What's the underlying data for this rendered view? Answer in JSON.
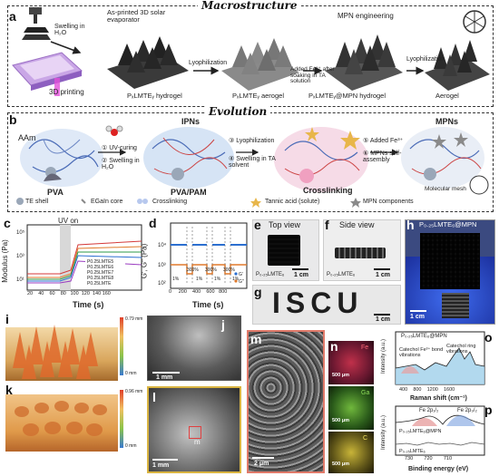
{
  "panel_a": {
    "letter": "a",
    "title": "Macrostructure",
    "labels": {
      "swelling": "Swelling in H₂O",
      "as_printed": "As-printed 3D solar evaporator",
      "printing": "3D printing",
      "lyophilization1": "Lyophilization",
      "hydrogel": "PₓLMTEᵧ hydrogel",
      "aerogel": "PₓLMTEᵧ aerogel",
      "mpn_engineering": "MPN engineering",
      "added_fe": "Added Fe³⁺ after soaking in TA solution",
      "mpn_hydrogel": "PₓLMTEᵧ@MPN hydrogel",
      "lyophilization2": "Lyophilization",
      "final_aerogel": "Aerogel"
    }
  },
  "panel_b": {
    "letter": "b",
    "title": "Evolution",
    "labels": {
      "aam": "AAm",
      "pva": "PVA",
      "step1": "① UV-curing",
      "step2": "② Swelling in H₂O",
      "ipns": "IPNs",
      "pva_pam": "PVA/PAM",
      "step3": "③ Lyophilization",
      "step4": "④ Swelling in TA solvent",
      "crosslinking_lbl": "Crosslinking",
      "step5": "⑤ Added Fe³⁺",
      "step6": "⑥ MPNs self-assembly",
      "mpns": "MPNs",
      "molecular_mesh": "Molecular mesh"
    },
    "legend": {
      "te_shell": "TE shell",
      "egain": "EGaIn core",
      "crosslinking": "Crosslinking",
      "tannic": "Tannic acid (solute)",
      "mpn_components": "MPN components"
    }
  },
  "panel_c": {
    "letter": "c",
    "uv_on": "UV on",
    "ylabel": "Modulus (Pa)",
    "xlabel": "Time (s)",
    "yticks": [
      "10⁵",
      "10³",
      "10¹"
    ],
    "xticks": [
      "20",
      "40",
      "60",
      "80",
      "100",
      "120",
      "140",
      "160"
    ]
  },
  "panel_d": {
    "letter": "d",
    "ylabel": "G′, G″ (Pa)",
    "xlabel": "Time (s)",
    "yticks": [
      "10⁴",
      "10³",
      "10²"
    ],
    "xticks": [
      "0",
      "200",
      "400",
      "600",
      "800"
    ],
    "strain_labels": [
      "1%",
      "300%",
      "1%",
      "300%",
      "1%",
      "300%",
      "1%"
    ]
  },
  "panel_e": {
    "letter": "e",
    "title": "Top view",
    "sample": "P₀.₂₅LMTE₆",
    "scale": "1 cm"
  },
  "panel_f": {
    "letter": "f",
    "title": "Side view",
    "sample": "P₀.₂₅LMTE₆",
    "scale": "1 cm"
  },
  "panel_g": {
    "letter": "g",
    "text": "ISCU",
    "scale": "1 cm"
  },
  "panel_h": {
    "letter": "h",
    "title": "P₀.₂₅LMTE₆@MPN",
    "scale": "1 cm"
  },
  "panel_i": {
    "letter": "i",
    "scale_max": "0.79 mm",
    "scale_min": "0 mm"
  },
  "panel_j": {
    "letter": "j",
    "scale": "1 mm"
  },
  "panel_k": {
    "letter": "k",
    "scale_max": "0.96 mm",
    "scale_min": "0 mm"
  },
  "panel_l": {
    "letter": "l",
    "scale": "1 mm",
    "inset": "m"
  },
  "panel_m": {
    "letter": "m",
    "scale": "2 μm"
  },
  "panel_n": {
    "letter": "n",
    "elements": [
      "Fe",
      "Ga",
      "C"
    ],
    "scale": "500 μm"
  },
  "panel_o": {
    "letter": "o",
    "sample": "P₀.₂₅LMTE₆@MPN",
    "ann1": "Catechol ring vibrations",
    "ann2": "Catechol Fe³⁺ bond vibrations",
    "ylabel": "Intensity (a.u.)",
    "xlabel": "Raman shift (cm⁻¹)",
    "xticks": [
      "400",
      "800",
      "1200",
      "1600"
    ]
  },
  "panel_p": {
    "letter": "p",
    "fe1": "Fe 2p₁/₂",
    "fe2": "Fe 2p₃/₂",
    "sample1": "P₀.₂₅LMTE₆@MPN",
    "sample2": "P₀.₂₅LMTE₆",
    "ylabel": "Intensity (a.u.)",
    "xlabel": "Binding energy (eV)",
    "xticks": [
      "730",
      "720",
      "710"
    ]
  },
  "colors": {
    "accent_pink": "#e0509a",
    "blue_glove": "#2b4fd8",
    "orange": "#e07a2c"
  }
}
